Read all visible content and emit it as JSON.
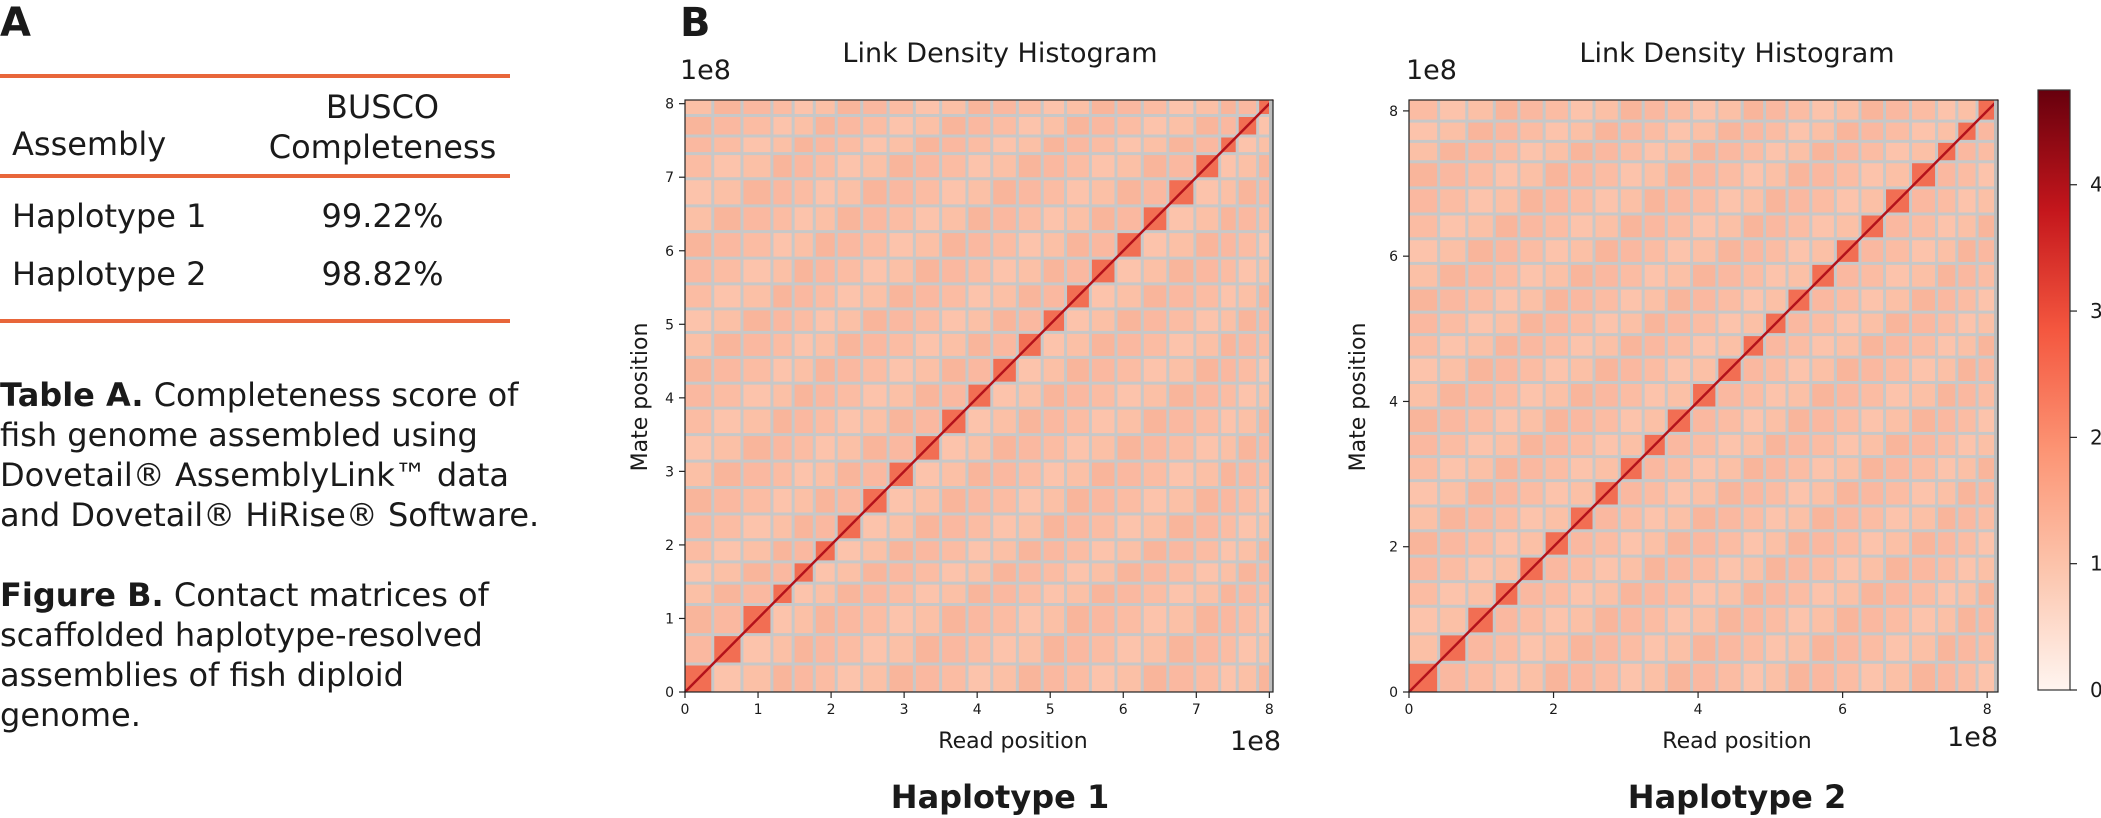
{
  "panel_a": {
    "letter": "A",
    "table": {
      "headers": [
        "Assembly",
        "BUSCO Completeness"
      ],
      "rows": [
        {
          "assembly": "Haplotype 1",
          "completeness": "99.22%"
        },
        {
          "assembly": "Haplotype 2",
          "completeness": "98.82%"
        }
      ]
    },
    "captions": [
      {
        "lead": "Table A.",
        "text": " Completeness score of fish genome assembled using Dovetail® AssemblyLink™ data and Dovetail® HiRise® Software."
      },
      {
        "lead": "Figure B.",
        "text": " Contact matrices of scaffolded haplotype-resolved assemblies of fish diploid genome."
      }
    ]
  },
  "panel_b": {
    "letter": "B"
  },
  "colors": {
    "accent_rule": "#e8663a",
    "grid": "#c8c8c8",
    "cmap_low": "#fff5f0",
    "cmap_high": "#67000d"
  },
  "chart_data": [
    {
      "type": "heatmap",
      "title": "Link Density Histogram",
      "xlabel": "Read position",
      "ylabel": "Mate position",
      "x_scale_label": "1e8",
      "y_scale_label": "1e8",
      "x_ticks": [
        "0",
        "1",
        "2",
        "3",
        "4",
        "5",
        "6",
        "7",
        "8"
      ],
      "y_ticks": [
        "0",
        "1",
        "2",
        "3",
        "4",
        "5",
        "6",
        "7",
        "8"
      ],
      "xlim": [
        0,
        8.05
      ],
      "ylim": [
        0,
        8.05
      ],
      "scaffold_boundaries": [
        0.38,
        0.78,
        1.19,
        1.48,
        1.77,
        2.07,
        2.42,
        2.78,
        3.14,
        3.5,
        3.86,
        4.2,
        4.55,
        4.89,
        5.21,
        5.55,
        5.9,
        6.26,
        6.61,
        6.98,
        7.32,
        7.56,
        7.84
      ],
      "caption": "Haplotype 1"
    },
    {
      "type": "heatmap",
      "title": "Link Density Histogram",
      "xlabel": "Read position",
      "ylabel": "Mate position",
      "x_scale_label": "1e8",
      "y_scale_label": "1e8",
      "x_ticks": [
        "0",
        "2",
        "4",
        "6",
        "8"
      ],
      "y_ticks": [
        "0",
        "2",
        "4",
        "6",
        "8"
      ],
      "xlim": [
        0,
        8.15
      ],
      "ylim": [
        0,
        8.15
      ],
      "scaffold_boundaries": [
        0.41,
        0.8,
        1.18,
        1.52,
        1.87,
        2.22,
        2.56,
        2.91,
        3.24,
        3.56,
        3.91,
        4.26,
        4.61,
        4.92,
        5.23,
        5.56,
        5.9,
        6.24,
        6.58,
        6.94,
        7.3,
        7.58,
        7.86
      ],
      "caption": "Haplotype 2"
    }
  ],
  "colorbar": {
    "ticks": [
      "0",
      "1",
      "2",
      "3",
      "4"
    ],
    "range": [
      0,
      4.75
    ]
  }
}
